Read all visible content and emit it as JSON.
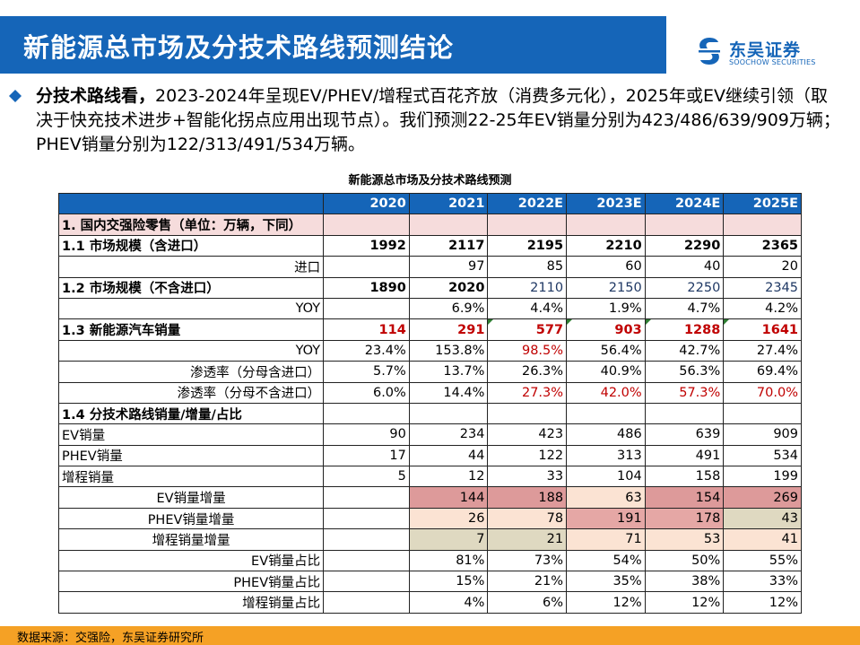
{
  "header": {
    "title": "新能源总市场及分技术路线预测结论"
  },
  "logo": {
    "name_cn": "东吴证券",
    "name_en": "SOOCHOW SECURITIES"
  },
  "intro": {
    "bold_lead": "分技术路线看，",
    "text": "2023-2024年呈现EV/PHEV/增程式百花齐放（消费多元化），2025年或EV继续引领（取决于快充技术进步+智能化拐点应用出现节点）。我们预测22-25年EV销量分别为423/486/639/909万辆；PHEV销量分别为122/313/491/534万辆。"
  },
  "table": {
    "title": "新能源总市场及分技术路线预测",
    "columns": [
      "2020",
      "2021",
      "2022E",
      "2023E",
      "2024E",
      "2025E"
    ],
    "section1_label": "1. 国内交强险零售（单位：万辆，下同）",
    "r_11": {
      "label": "1.1 市场规模（含进口）",
      "values": [
        "1992",
        "2117",
        "2195",
        "2210",
        "2290",
        "2365"
      ]
    },
    "r_import": {
      "label": "进口",
      "values": [
        "",
        "97",
        "85",
        "60",
        "40",
        "20"
      ]
    },
    "r_12": {
      "label": "1.2 市场规模（不含进口）",
      "values": [
        "1890",
        "2020",
        "2110",
        "2150",
        "2250",
        "2345"
      ]
    },
    "r_yoy1": {
      "label": "YOY",
      "values": [
        "",
        "6.9%",
        "4.4%",
        "1.9%",
        "4.7%",
        "4.2%"
      ]
    },
    "r_13": {
      "label": "1.3 新能源汽车销量",
      "values": [
        "114",
        "291",
        "577",
        "903",
        "1288",
        "1641"
      ]
    },
    "r_yoy2": {
      "label": "YOY",
      "values": [
        "23.4%",
        "153.8%",
        "98.5%",
        "56.4%",
        "42.7%",
        "27.4%"
      ]
    },
    "r_pen1": {
      "label": "渗透率（分母含进口）",
      "values": [
        "5.7%",
        "13.7%",
        "26.3%",
        "40.9%",
        "56.3%",
        "69.4%"
      ]
    },
    "r_pen2": {
      "label": "渗透率（分母不含进口）",
      "values": [
        "6.0%",
        "14.4%",
        "27.3%",
        "42.0%",
        "57.3%",
        "70.0%"
      ]
    },
    "section14_label": "1.4 分技术路线销量/增量/占比",
    "r_ev": {
      "label": "EV销量",
      "values": [
        "90",
        "234",
        "423",
        "486",
        "639",
        "909"
      ]
    },
    "r_phev": {
      "label": "PHEV销量",
      "values": [
        "17",
        "44",
        "122",
        "313",
        "491",
        "534"
      ]
    },
    "r_erev": {
      "label": "增程销量",
      "values": [
        "5",
        "12",
        "33",
        "104",
        "158",
        "199"
      ]
    },
    "r_ev_inc": {
      "label": "EV销量增量",
      "values": [
        "",
        "144",
        "188",
        "63",
        "154",
        "269"
      ]
    },
    "r_phev_inc": {
      "label": "PHEV销量增量",
      "values": [
        "",
        "26",
        "78",
        "191",
        "178",
        "43"
      ]
    },
    "r_erev_inc": {
      "label": "增程销量增量",
      "values": [
        "",
        "7",
        "21",
        "71",
        "53",
        "41"
      ]
    },
    "r_ev_share": {
      "label": "EV销量占比",
      "values": [
        "",
        "81%",
        "73%",
        "54%",
        "50%",
        "55%"
      ]
    },
    "r_phev_share": {
      "label": "PHEV销量占比",
      "values": [
        "",
        "15%",
        "21%",
        "35%",
        "38%",
        "33%"
      ]
    },
    "r_erev_share": {
      "label": "增程销量占比",
      "values": [
        "",
        "4%",
        "6%",
        "12%",
        "12%",
        "12%"
      ]
    }
  },
  "footer": {
    "source": "数据来源：交强险，东吴证券研究所"
  },
  "colors": {
    "header_blue": "#1565b8",
    "footer_orange": "#f5a125",
    "accent_red": "#c00000"
  }
}
